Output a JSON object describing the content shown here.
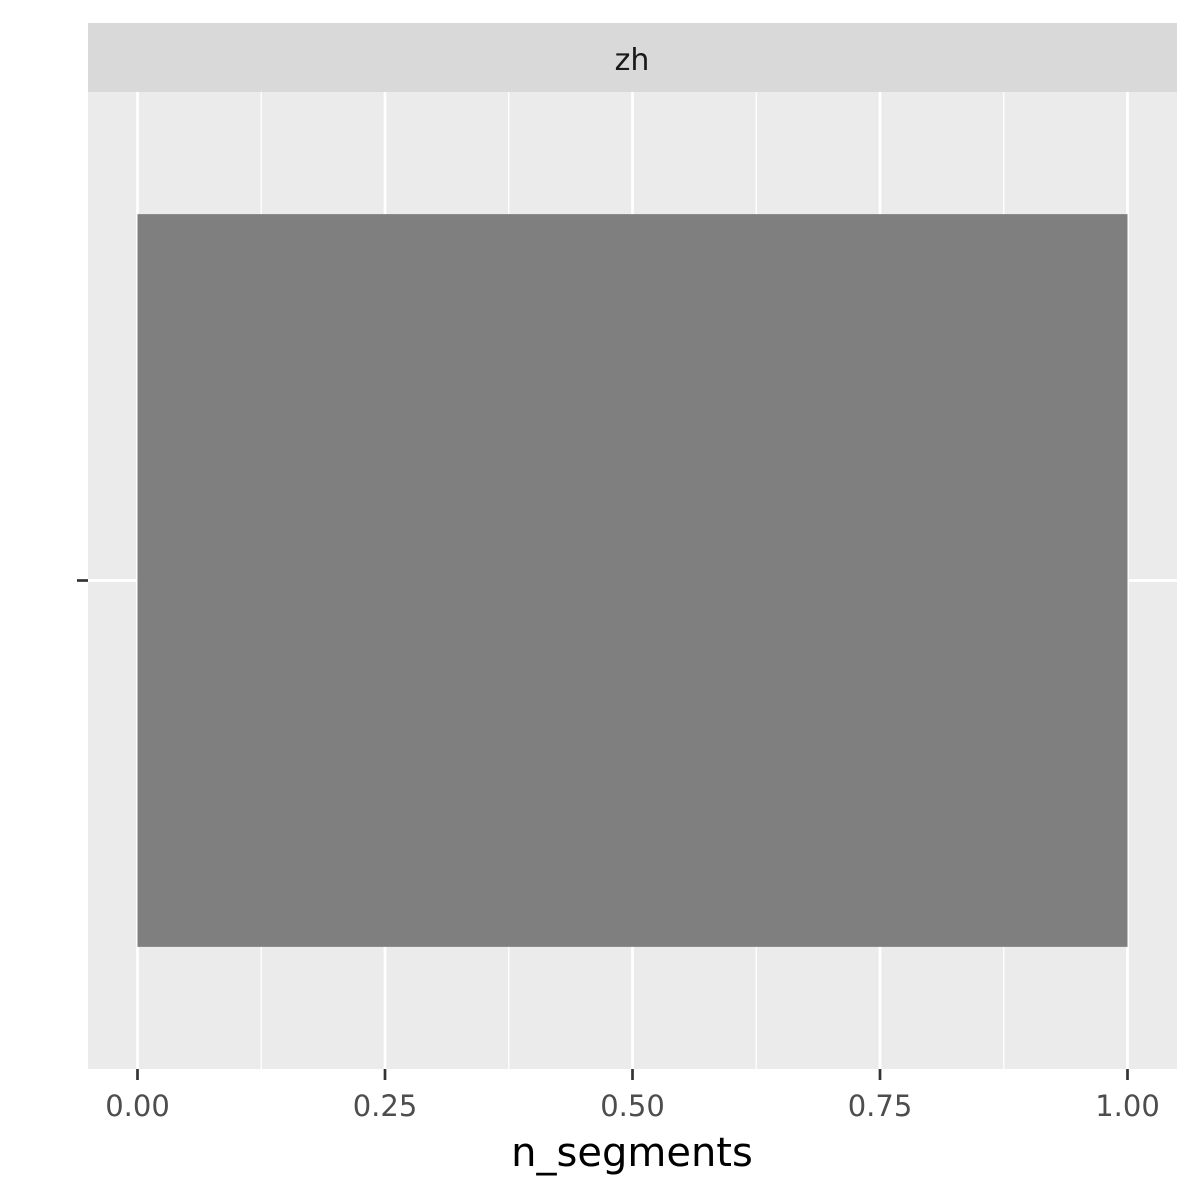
{
  "chart_data": {
    "type": "bar",
    "orientation": "horizontal",
    "facet": "zh",
    "categories": [
      ""
    ],
    "values": [
      1.0
    ],
    "xlabel": "n_segments",
    "ylabel": "",
    "xlim": [
      -0.05,
      1.05
    ],
    "xticks": [
      0.0,
      0.25,
      0.5,
      0.75,
      1.0
    ],
    "xtick_labels": [
      "0.00",
      "0.25",
      "0.50",
      "0.75",
      "1.00"
    ],
    "grid": true,
    "colors": {
      "bar": "#7f7f7f",
      "panel": "#ebebeb",
      "strip": "#d9d9d9",
      "grid": "#ffffff"
    }
  }
}
